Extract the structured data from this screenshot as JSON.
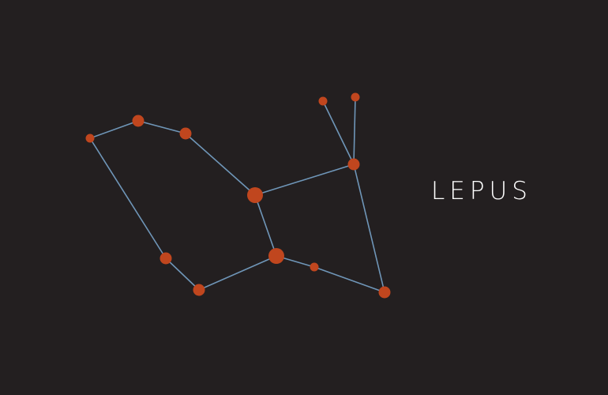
{
  "title": "LEPUS",
  "colors": {
    "background": "#231f20",
    "line": "#6f96b8",
    "star": "#c0461e",
    "title": "#ffffff"
  },
  "stars": [
    {
      "id": "s1",
      "magnitude": "small"
    },
    {
      "id": "s2",
      "magnitude": "medium"
    },
    {
      "id": "s3",
      "magnitude": "medium"
    },
    {
      "id": "s4",
      "magnitude": "large"
    },
    {
      "id": "s5",
      "magnitude": "small"
    },
    {
      "id": "s6",
      "magnitude": "small"
    },
    {
      "id": "s7",
      "magnitude": "medium"
    },
    {
      "id": "s8",
      "magnitude": "medium"
    },
    {
      "id": "s9",
      "magnitude": "medium"
    },
    {
      "id": "s10",
      "magnitude": "large"
    },
    {
      "id": "s11",
      "magnitude": "small"
    },
    {
      "id": "s12",
      "magnitude": "medium"
    }
  ],
  "edges": [
    [
      "s1",
      "s2"
    ],
    [
      "s2",
      "s3"
    ],
    [
      "s3",
      "s4"
    ],
    [
      "s4",
      "s7"
    ],
    [
      "s5",
      "s7"
    ],
    [
      "s6",
      "s7"
    ],
    [
      "s7",
      "s12"
    ],
    [
      "s4",
      "s10"
    ],
    [
      "s10",
      "s11"
    ],
    [
      "s11",
      "s12"
    ],
    [
      "s10",
      "s9"
    ],
    [
      "s9",
      "s8"
    ],
    [
      "s8",
      "s1"
    ]
  ]
}
